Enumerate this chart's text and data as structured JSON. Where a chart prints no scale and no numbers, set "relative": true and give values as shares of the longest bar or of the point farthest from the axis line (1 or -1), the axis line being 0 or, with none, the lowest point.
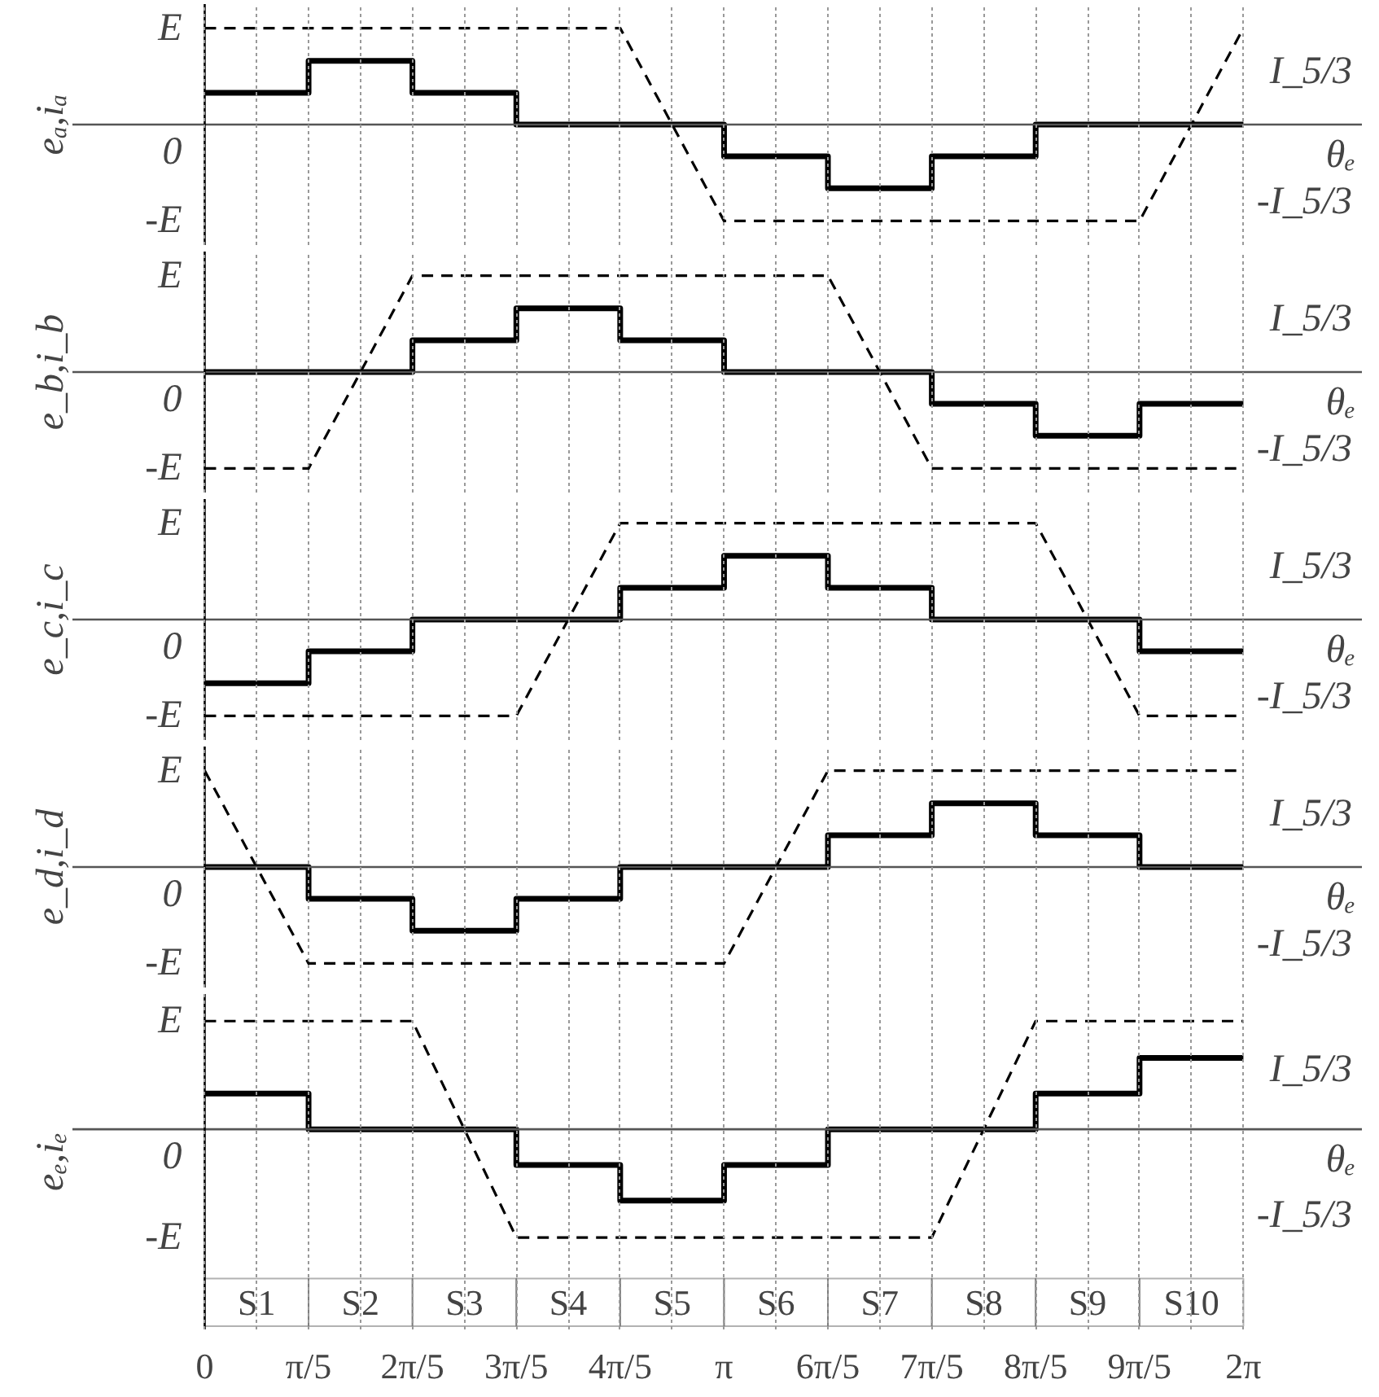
{
  "chart_data": [
    {
      "type": "line",
      "ylabel": "eₐ,iₐ",
      "xlabel": "θₑ",
      "relative": true,
      "grid": "x",
      "tick_labels": false,
      "xlim": [
        -0.8,
        7.0
      ],
      "xticks": [
        {
          "value": 0,
          "label": null
        },
        {
          "value": 0.3142,
          "label": null
        },
        {
          "value": 0.6283,
          "label": null
        },
        {
          "value": 0.9425,
          "label": null
        },
        {
          "value": 1.2566,
          "label": null
        },
        {
          "value": 1.5708,
          "label": null
        },
        {
          "value": 1.885,
          "label": null
        },
        {
          "value": 2.1991,
          "label": null
        },
        {
          "value": 2.5133,
          "label": null
        },
        {
          "value": 2.8274,
          "label": null
        },
        {
          "value": 3.1416,
          "label": null
        },
        {
          "value": 3.4558,
          "label": null
        },
        {
          "value": 3.7699,
          "label": null
        },
        {
          "value": 4.0841,
          "label": null
        },
        {
          "value": 4.3982,
          "label": null
        },
        {
          "value": 4.7124,
          "label": null
        },
        {
          "value": 5.0265,
          "label": null
        },
        {
          "value": 5.3407,
          "label": null
        },
        {
          "value": 5.6549,
          "label": null
        },
        {
          "value": 5.969,
          "label": null
        },
        {
          "value": 6.2832,
          "label": null
        }
      ],
      "annotations": [
        "E",
        "0",
        "-E",
        "I_5/3",
        "-I_5/3"
      ],
      "ref_lines": [
        {
          "axis": "y",
          "value": 0,
          "color": "#555555"
        },
        {
          "axis": "x",
          "value": 0,
          "color": "#000000"
        }
      ],
      "series": [
        {
          "line_style": "dashed",
          "color": "#000000",
          "x": [
            0,
            2.5133,
            3.1416,
            5.6549,
            6.2832
          ],
          "values": [
            1,
            1,
            -1,
            -1,
            1
          ]
        },
        {
          "type": "step",
          "line_style": "solid",
          "color": "#000000",
          "x": [
            0,
            0.6283,
            1.2566,
            1.885,
            2.5133,
            3.1416,
            3.7699,
            4.3982,
            5.0265,
            5.6549,
            6.2832
          ],
          "values": [
            0.33,
            0.66,
            0.33,
            0,
            0,
            -0.33,
            -0.66,
            -0.33,
            0,
            0,
            0
          ]
        }
      ]
    },
    {
      "type": "line",
      "ylabel": "e_b,i_b",
      "xlabel": "θₑ",
      "relative": true,
      "grid": "x",
      "tick_labels": false,
      "xlim": [
        -0.8,
        7.0
      ],
      "xticks": [
        {
          "value": 0,
          "label": null
        },
        {
          "value": 0.3142,
          "label": null
        },
        {
          "value": 0.6283,
          "label": null
        },
        {
          "value": 0.9425,
          "label": null
        },
        {
          "value": 1.2566,
          "label": null
        },
        {
          "value": 1.5708,
          "label": null
        },
        {
          "value": 1.885,
          "label": null
        },
        {
          "value": 2.1991,
          "label": null
        },
        {
          "value": 2.5133,
          "label": null
        },
        {
          "value": 2.8274,
          "label": null
        },
        {
          "value": 3.1416,
          "label": null
        },
        {
          "value": 3.4558,
          "label": null
        },
        {
          "value": 3.7699,
          "label": null
        },
        {
          "value": 4.0841,
          "label": null
        },
        {
          "value": 4.3982,
          "label": null
        },
        {
          "value": 4.7124,
          "label": null
        },
        {
          "value": 5.0265,
          "label": null
        },
        {
          "value": 5.3407,
          "label": null
        },
        {
          "value": 5.6549,
          "label": null
        },
        {
          "value": 5.969,
          "label": null
        },
        {
          "value": 6.2832,
          "label": null
        }
      ],
      "annotations": [
        "E",
        "0",
        "-E",
        "I_5/3",
        "-I_5/3"
      ],
      "ref_lines": [
        {
          "axis": "y",
          "value": 0,
          "color": "#555555"
        },
        {
          "axis": "x",
          "value": 0,
          "color": "#000000"
        }
      ],
      "series": [
        {
          "line_style": "dashed",
          "color": "#000000",
          "x": [
            0,
            0.6283,
            1.2566,
            3.7699,
            4.3982,
            6.2832
          ],
          "values": [
            -1,
            -1,
            1,
            1,
            -1,
            -1
          ]
        },
        {
          "type": "step",
          "line_style": "solid",
          "color": "#000000",
          "x": [
            0,
            0.6283,
            1.2566,
            1.885,
            2.5133,
            3.1416,
            3.7699,
            4.3982,
            5.0265,
            5.6549,
            6.2832
          ],
          "values": [
            0,
            0,
            0.33,
            0.66,
            0.33,
            0,
            0,
            -0.33,
            -0.66,
            -0.33,
            -0.33
          ]
        }
      ]
    },
    {
      "type": "line",
      "ylabel": "e_c,i_c",
      "xlabel": "θₑ",
      "relative": true,
      "grid": "x",
      "tick_labels": false,
      "xlim": [
        -0.8,
        7.0
      ],
      "xticks": [
        {
          "value": 0,
          "label": null
        },
        {
          "value": 0.3142,
          "label": null
        },
        {
          "value": 0.6283,
          "label": null
        },
        {
          "value": 0.9425,
          "label": null
        },
        {
          "value": 1.2566,
          "label": null
        },
        {
          "value": 1.5708,
          "label": null
        },
        {
          "value": 1.885,
          "label": null
        },
        {
          "value": 2.1991,
          "label": null
        },
        {
          "value": 2.5133,
          "label": null
        },
        {
          "value": 2.8274,
          "label": null
        },
        {
          "value": 3.1416,
          "label": null
        },
        {
          "value": 3.4558,
          "label": null
        },
        {
          "value": 3.7699,
          "label": null
        },
        {
          "value": 4.0841,
          "label": null
        },
        {
          "value": 4.3982,
          "label": null
        },
        {
          "value": 4.7124,
          "label": null
        },
        {
          "value": 5.0265,
          "label": null
        },
        {
          "value": 5.3407,
          "label": null
        },
        {
          "value": 5.6549,
          "label": null
        },
        {
          "value": 5.969,
          "label": null
        },
        {
          "value": 6.2832,
          "label": null
        }
      ],
      "annotations": [
        "E",
        "0",
        "-E",
        "I_5/3",
        "-I_5/3"
      ],
      "ref_lines": [
        {
          "axis": "y",
          "value": 0,
          "color": "#555555"
        },
        {
          "axis": "x",
          "value": 0,
          "color": "#000000"
        }
      ],
      "series": [
        {
          "line_style": "dashed",
          "color": "#000000",
          "x": [
            0,
            1.885,
            2.5133,
            5.0265,
            5.6549,
            6.2832
          ],
          "values": [
            -1,
            -1,
            1,
            1,
            -1,
            -1
          ]
        },
        {
          "type": "step",
          "line_style": "solid",
          "color": "#000000",
          "x": [
            0,
            0.6283,
            1.2566,
            1.885,
            2.5133,
            3.1416,
            3.7699,
            4.3982,
            5.0265,
            5.6549,
            6.2832
          ],
          "values": [
            -0.66,
            -0.33,
            0,
            0,
            0.33,
            0.66,
            0.33,
            0,
            0,
            -0.33,
            -0.33
          ]
        }
      ]
    },
    {
      "type": "line",
      "ylabel": "e_d,i_d",
      "xlabel": "θₑ",
      "relative": true,
      "grid": "x",
      "tick_labels": false,
      "xlim": [
        -0.8,
        7.0
      ],
      "xticks": [
        {
          "value": 0,
          "label": null
        },
        {
          "value": 0.3142,
          "label": null
        },
        {
          "value": 0.6283,
          "label": null
        },
        {
          "value": 0.9425,
          "label": null
        },
        {
          "value": 1.2566,
          "label": null
        },
        {
          "value": 1.5708,
          "label": null
        },
        {
          "value": 1.885,
          "label": null
        },
        {
          "value": 2.1991,
          "label": null
        },
        {
          "value": 2.5133,
          "label": null
        },
        {
          "value": 2.8274,
          "label": null
        },
        {
          "value": 3.1416,
          "label": null
        },
        {
          "value": 3.4558,
          "label": null
        },
        {
          "value": 3.7699,
          "label": null
        },
        {
          "value": 4.0841,
          "label": null
        },
        {
          "value": 4.3982,
          "label": null
        },
        {
          "value": 4.7124,
          "label": null
        },
        {
          "value": 5.0265,
          "label": null
        },
        {
          "value": 5.3407,
          "label": null
        },
        {
          "value": 5.6549,
          "label": null
        },
        {
          "value": 5.969,
          "label": null
        },
        {
          "value": 6.2832,
          "label": null
        }
      ],
      "annotations": [
        "E",
        "0",
        "-E",
        "I_5/3",
        "-I_5/3"
      ],
      "ref_lines": [
        {
          "axis": "y",
          "value": 0,
          "color": "#555555"
        },
        {
          "axis": "x",
          "value": 0,
          "color": "#000000"
        }
      ],
      "series": [
        {
          "line_style": "dashed",
          "color": "#000000",
          "x": [
            0,
            0.6283,
            3.1416,
            3.7699,
            6.2832
          ],
          "values": [
            1,
            -1,
            -1,
            1,
            1
          ]
        },
        {
          "type": "step",
          "line_style": "solid",
          "color": "#000000",
          "x": [
            0,
            0.6283,
            1.2566,
            1.885,
            2.5133,
            3.1416,
            3.7699,
            4.3982,
            5.0265,
            5.6549,
            6.2832
          ],
          "values": [
            0,
            -0.33,
            -0.66,
            -0.33,
            0,
            0,
            0.33,
            0.66,
            0.33,
            0,
            0
          ]
        }
      ]
    },
    {
      "type": "line",
      "ylabel": "eₑ,iₑ",
      "xlabel": "θₑ",
      "relative": true,
      "grid": "x",
      "xlim": [
        -0.8,
        7.0
      ],
      "xticks": [
        0,
        {
          "value": 0.3142,
          "label": null
        },
        {
          "value": 0.6283,
          "label": "π/5"
        },
        {
          "value": 0.9425,
          "label": null
        },
        {
          "value": 1.2566,
          "label": "2π/5"
        },
        {
          "value": 1.5708,
          "label": null
        },
        {
          "value": 1.885,
          "label": "3π/5"
        },
        {
          "value": 2.1991,
          "label": null
        },
        {
          "value": 2.5133,
          "label": "4π/5"
        },
        {
          "value": 2.8274,
          "label": null
        },
        {
          "value": 3.1416,
          "label": "π"
        },
        {
          "value": 3.4558,
          "label": null
        },
        {
          "value": 3.7699,
          "label": "6π/5"
        },
        {
          "value": 4.0841,
          "label": null
        },
        {
          "value": 4.3982,
          "label": "7π/5"
        },
        {
          "value": 4.7124,
          "label": null
        },
        {
          "value": 5.0265,
          "label": "8π/5"
        },
        {
          "value": 5.3407,
          "label": null
        },
        {
          "value": 5.6549,
          "label": "9π/5"
        },
        {
          "value": 5.969,
          "label": null
        },
        {
          "value": 6.2832,
          "label": "2π"
        }
      ],
      "annotations": [
        "E",
        "0",
        "-E",
        "I_5/3",
        "-I_5/3",
        "S1",
        "S2",
        "S3",
        "S4",
        "S5",
        "S6",
        "S7",
        "S8",
        "S9",
        "S10"
      ],
      "ref_lines": [
        {
          "axis": "y",
          "value": 0,
          "color": "#555555"
        },
        {
          "axis": "x",
          "value": 0,
          "color": "#000000"
        }
      ],
      "series": [
        {
          "line_style": "dashed",
          "color": "#000000",
          "x": [
            0,
            1.2566,
            1.885,
            4.3982,
            5.0265,
            6.2832
          ],
          "values": [
            1,
            1,
            -1,
            -1,
            1,
            1
          ]
        },
        {
          "type": "step",
          "line_style": "solid",
          "color": "#000000",
          "x": [
            0,
            0.6283,
            1.2566,
            1.885,
            2.5133,
            3.1416,
            3.7699,
            4.3982,
            5.0265,
            5.6549,
            6.2832
          ],
          "values": [
            0.33,
            0,
            0,
            -0.33,
            -0.66,
            -0.33,
            0,
            0,
            0.33,
            0.66,
            0.66
          ]
        }
      ]
    }
  ]
}
